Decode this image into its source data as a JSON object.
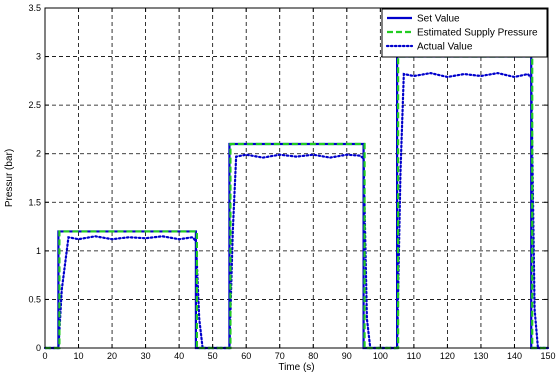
{
  "chart_data": {
    "type": "line",
    "xlabel": "Time (s)",
    "ylabel": "Pressur (bar)",
    "xlim": [
      0,
      150
    ],
    "ylim": [
      0,
      3.5
    ],
    "xticks": [
      0,
      10,
      20,
      30,
      40,
      50,
      60,
      70,
      80,
      90,
      100,
      110,
      120,
      130,
      140,
      150
    ],
    "yticks": [
      0,
      0.5,
      1,
      1.5,
      2,
      2.5,
      3,
      3.5
    ],
    "xtick_labels": [
      "0",
      "10",
      "20",
      "30",
      "40",
      "50",
      "60",
      "70",
      "80",
      "90",
      "100",
      "110",
      "120",
      "130",
      "140",
      "150"
    ],
    "ytick_labels": [
      "0",
      "0.5",
      "1",
      "1.5",
      "2",
      "2.5",
      "3",
      "3.5"
    ],
    "grid": true,
    "legend_position": "top-right",
    "series": [
      {
        "name": "Set Value",
        "color": "#0000cc",
        "style": "solid",
        "x": [
          0,
          4,
          4,
          45,
          45,
          55,
          55,
          95,
          95,
          105,
          105,
          145,
          145,
          150
        ],
        "y": [
          0,
          0,
          1.2,
          1.2,
          0,
          0,
          2.1,
          2.1,
          0,
          0,
          3.0,
          3.0,
          0,
          0
        ]
      },
      {
        "name": "Estimated Supply Pressure",
        "color": "#22cc22",
        "style": "dashed",
        "x": [
          0,
          4.3,
          4.3,
          45.3,
          45.3,
          55.3,
          55.3,
          95.3,
          95.3,
          105.3,
          105.3,
          145.3,
          145.3,
          150
        ],
        "y": [
          0,
          0,
          1.2,
          1.2,
          0,
          0,
          2.1,
          2.1,
          0,
          0,
          3.0,
          3.0,
          0,
          0
        ]
      },
      {
        "name": "Actual Value",
        "color": "#0000cc",
        "style": "dotted",
        "x": [
          0,
          4,
          5,
          7,
          10,
          15,
          20,
          25,
          30,
          35,
          40,
          44,
          45,
          46,
          47,
          55,
          56,
          57,
          60,
          65,
          70,
          75,
          80,
          85,
          90,
          94,
          95,
          96,
          97,
          105,
          106,
          107,
          110,
          115,
          120,
          125,
          130,
          135,
          140,
          144,
          145,
          146,
          147,
          150
        ],
        "y": [
          0,
          0,
          0.6,
          1.14,
          1.12,
          1.15,
          1.12,
          1.14,
          1.13,
          1.15,
          1.12,
          1.14,
          1.1,
          0.3,
          0,
          0,
          1.2,
          1.97,
          1.99,
          1.96,
          1.99,
          1.97,
          1.99,
          1.96,
          1.99,
          1.98,
          1.95,
          0.3,
          0,
          0,
          1.8,
          2.82,
          2.8,
          2.83,
          2.79,
          2.82,
          2.8,
          2.83,
          2.79,
          2.82,
          2.78,
          0.4,
          0,
          0
        ]
      }
    ]
  }
}
